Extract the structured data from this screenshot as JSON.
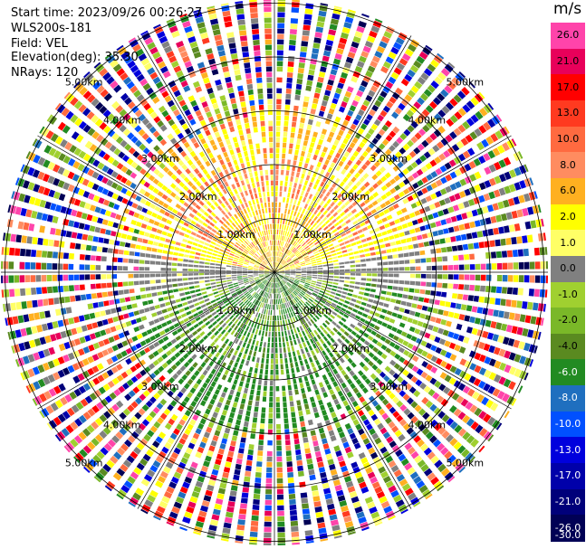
{
  "header": {
    "start_time": "Start time: 2023/09/26 00:26:27",
    "instrument": "WLS200s-181",
    "field": "Field: VEL",
    "elevation": "Elevation(deg): 35.30",
    "nrays": "NRays: 120"
  },
  "colorbar": {
    "unit": "m/s",
    "ticks": [
      "26.0",
      "21.0",
      "17.0",
      "13.0",
      "10.0",
      "8.0",
      "6.0",
      "2.0",
      "1.0",
      "0.0",
      "-1.0",
      "-2.0",
      "-4.0",
      "-6.0",
      "-8.0",
      "-10.0",
      "-13.0",
      "-17.0",
      "-21.0",
      "-26.0",
      "-30.0"
    ],
    "colors": [
      "#ff44aa",
      "#e8005a",
      "#ff0000",
      "#ff3a20",
      "#ff6a40",
      "#ff8c60",
      "#ffb020",
      "#ffff00",
      "#ffff66",
      "#808080",
      "#a0d030",
      "#7ab828",
      "#5a8a20",
      "#228b22",
      "#1f6fbf",
      "#0050ff",
      "#0000dd",
      "#0000aa",
      "#00007a",
      "#000055"
    ]
  },
  "chart_data": {
    "type": "heatmap",
    "title": "",
    "field": "VEL",
    "unit": "m/s",
    "nrays": 120,
    "range_rings_km": [
      1.0,
      2.0,
      3.0,
      4.0,
      5.0
    ],
    "ring_labels": [
      "1.00km",
      "2.00km",
      "3.00km",
      "4.00km",
      "5.00km"
    ],
    "colorbar_range": [
      -30.0,
      26.0
    ],
    "pattern": "noise-dominated outer ranges; coherent near-range velocities: positive (yellow/orange) toward north, negative (green) toward south, near-zero (gray) along east-west"
  }
}
